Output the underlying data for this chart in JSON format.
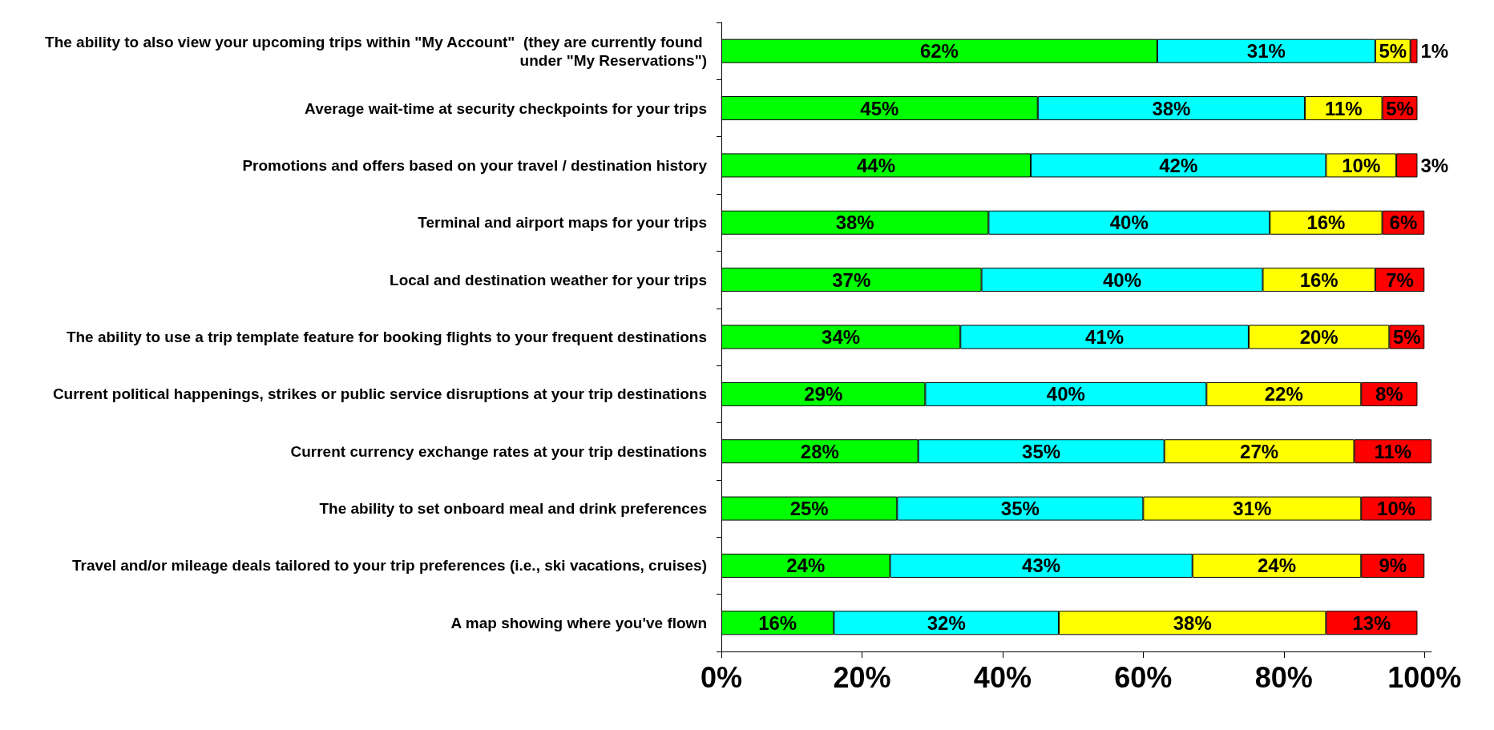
{
  "chart_data": {
    "type": "bar",
    "orientation": "horizontal",
    "stacked": true,
    "categories": [
      "The ability to also view your upcoming trips within \"My Account\"  (they are currently found under \"My Reservations\")",
      "Average wait-time at security checkpoints for your trips",
      "Promotions and offers based on your travel / destination history",
      "Terminal and airport maps for your trips",
      "Local and destination weather for your trips",
      "The ability to use a trip template feature for booking flights to your frequent destinations",
      "Current political happenings, strikes or public service disruptions at your trip destinations",
      "Current currency exchange rates at your trip destinations",
      "The ability to set onboard meal and drink preferences",
      "Travel and/or mileage deals tailored to your trip preferences (i.e., ski vacations, cruises)",
      "A map showing where you've flown"
    ],
    "series": [
      {
        "color": "#00ff00",
        "values": [
          62,
          45,
          44,
          38,
          37,
          34,
          29,
          28,
          25,
          24,
          16
        ],
        "value_labels": [
          "62%",
          "45%",
          "44%",
          "38%",
          "37%",
          "34%",
          "29%",
          "28%",
          "25%",
          "24%",
          "16%"
        ]
      },
      {
        "color": "#00ffff",
        "values": [
          31,
          38,
          42,
          40,
          40,
          41,
          40,
          35,
          35,
          43,
          32
        ],
        "value_labels": [
          "31%",
          "38%",
          "42%",
          "40%",
          "40%",
          "41%",
          "40%",
          "35%",
          "35%",
          "43%",
          "32%"
        ]
      },
      {
        "color": "#ffff00",
        "values": [
          5,
          11,
          10,
          16,
          16,
          20,
          22,
          27,
          31,
          24,
          38
        ],
        "value_labels": [
          "5%",
          "11%",
          "10%",
          "16%",
          "16%",
          "20%",
          "22%",
          "27%",
          "31%",
          "24%",
          "38%"
        ]
      },
      {
        "color": "#ff0000",
        "values": [
          1,
          5,
          3,
          6,
          7,
          5,
          8,
          11,
          10,
          9,
          13
        ],
        "value_labels": [
          "1%",
          "5%",
          "3%",
          "6%",
          "7%",
          "5%",
          "8%",
          "11%",
          "10%",
          "9%",
          "13%"
        ]
      }
    ],
    "xlim": [
      0,
      101
    ],
    "xticks": [
      {
        "value": 0,
        "label": "0%"
      },
      {
        "value": 20,
        "label": "20%"
      },
      {
        "value": 40,
        "label": "40%"
      },
      {
        "value": 60,
        "label": "60%"
      },
      {
        "value": 80,
        "label": "80%"
      },
      {
        "value": 100,
        "label": "100%"
      }
    ],
    "grid": false
  }
}
